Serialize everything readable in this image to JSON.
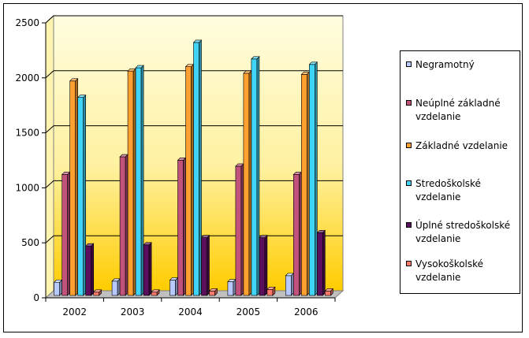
{
  "chart_data": {
    "type": "bar",
    "title": "",
    "xlabel": "",
    "ylabel": "",
    "categories": [
      "2002",
      "2003",
      "2004",
      "2005",
      "2006"
    ],
    "ylim": [
      0,
      2500
    ],
    "yticks": [
      0,
      500,
      1000,
      1500,
      2000,
      2500
    ],
    "grid": true,
    "legend_position": "right",
    "style": "3d-clustered-columns",
    "plot_background": [
      "#fffde0",
      "#ffcc00"
    ],
    "series": [
      {
        "name": "Negramotný",
        "color": "#b7c9ff",
        "values": [
          120,
          130,
          140,
          125,
          180
        ]
      },
      {
        "name": "Neúplné základné vzdelanie",
        "color": "#c0527c",
        "values": [
          1100,
          1260,
          1230,
          1175,
          1100
        ]
      },
      {
        "name": "Základné vzdelanie",
        "color": "#ffa030",
        "values": [
          1950,
          2040,
          2080,
          2020,
          2010
        ]
      },
      {
        "name": "Stredoškolské vzdelanie",
        "color": "#40d4f8",
        "values": [
          1800,
          2070,
          2300,
          2150,
          2100
        ]
      },
      {
        "name": "Úplné stredoškolské vzdelanie",
        "color": "#5a0e5c",
        "values": [
          450,
          460,
          525,
          525,
          570
        ]
      },
      {
        "name": "Vysokoškolské vzdelanie",
        "color": "#ff7a6a",
        "values": [
          30,
          30,
          40,
          55,
          40
        ]
      }
    ]
  }
}
